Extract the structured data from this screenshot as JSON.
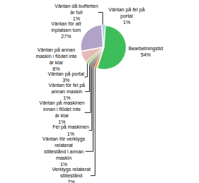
{
  "chart_data": {
    "type": "pie",
    "categories": [
      "Väntan på fel på portal",
      "Bearbetningstid",
      "Verktygs relaterat stillestånd",
      "Väntan för verktygs relaterat stillestånd i annan maskin",
      "Fel på maskinen",
      "Väntan på maskinen innan i flödet inte är klar",
      "Väntan för fel på annan maskin",
      "Väntan på portal",
      "Väntan på annan maskin i flödet inte är klar",
      "Väntan för att inplatsen tom",
      "Väntan då bufferten är full"
    ],
    "values": [
      1,
      54,
      2,
      1,
      1,
      1,
      1,
      3,
      8,
      27,
      1
    ],
    "value_labels": [
      "1%",
      "54%",
      "2%",
      "1%",
      "1%",
      "1%",
      "1%",
      "3%",
      "8%",
      "27%",
      "1%"
    ],
    "colors": [
      "#4BACC6",
      "#3DBE5A",
      "#F79646",
      "#2C4D75",
      "#772C2A",
      "#5F7530",
      "#4D3B62",
      "#C3D69B",
      "#E6B9B8",
      "#B3A2C7",
      "#93CDDD"
    ],
    "data_labels": true
  }
}
